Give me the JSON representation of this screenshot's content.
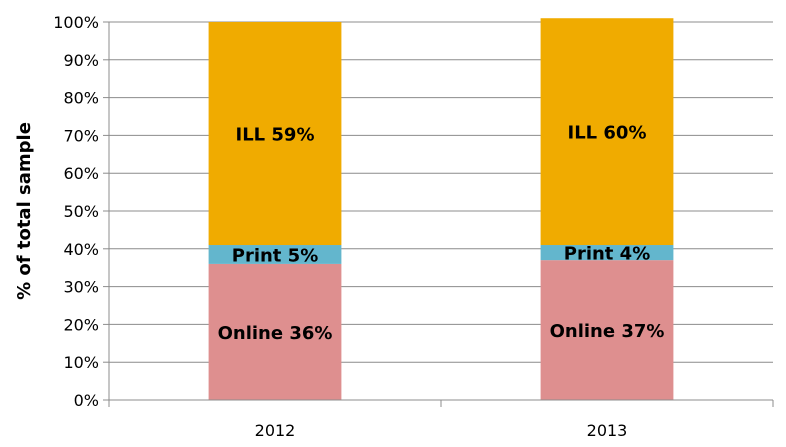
{
  "chart_data": {
    "type": "bar",
    "stacked": true,
    "percent_stacked": true,
    "categories": [
      "2012",
      "2013"
    ],
    "series": [
      {
        "name": "Online",
        "values": [
          36,
          37
        ],
        "color": "#de8f8f",
        "labels": [
          "Online 36%",
          "Online 37%"
        ]
      },
      {
        "name": "Print",
        "values": [
          5,
          4
        ],
        "color": "#63b6cd",
        "labels": [
          "Print 5%",
          "Print 4%"
        ]
      },
      {
        "name": "ILL",
        "values": [
          59,
          60
        ],
        "color": "#f0ab00",
        "labels": [
          "ILL 59%",
          "ILL 60%"
        ]
      }
    ],
    "title": "",
    "xlabel": "",
    "ylabel": "% of total sample",
    "ylim": [
      0,
      100
    ],
    "yticks": [
      0,
      10,
      20,
      30,
      40,
      50,
      60,
      70,
      80,
      90,
      100
    ],
    "ytick_labels": [
      "0%",
      "10%",
      "20%",
      "30%",
      "40%",
      "50%",
      "60%",
      "70%",
      "80%",
      "90%",
      "100%"
    ],
    "grid": true,
    "legend": "none"
  }
}
